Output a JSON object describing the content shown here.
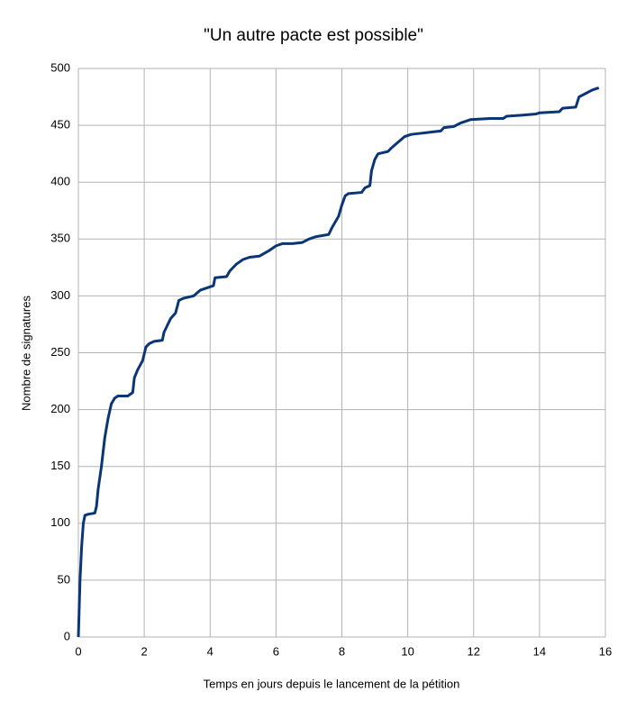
{
  "chart_data": {
    "type": "line",
    "title": "\"Un autre pacte est possible\"",
    "x_label": "Temps en jours depuis le lancement de la pétition",
    "y_label": "Nombre de signatures",
    "xlim": [
      0,
      16
    ],
    "xticks": [
      0,
      2,
      4,
      6,
      8,
      10,
      12,
      14,
      16
    ],
    "ylim": [
      0,
      500
    ],
    "yticks": [
      0,
      50,
      100,
      150,
      200,
      250,
      300,
      350,
      400,
      450,
      500
    ],
    "grid": true,
    "series": [
      {
        "color": "#0a3576",
        "x": [
          0,
          0.02,
          0.05,
          0.1,
          0.15,
          0.2,
          0.3,
          0.5,
          0.55,
          0.6,
          0.7,
          0.8,
          0.9,
          1.0,
          1.1,
          1.2,
          1.5,
          1.65,
          1.7,
          1.8,
          1.95,
          2.05,
          2.15,
          2.3,
          2.55,
          2.6,
          2.8,
          2.95,
          3.05,
          3.2,
          3.5,
          3.7,
          4.0,
          4.1,
          4.15,
          4.5,
          4.6,
          4.8,
          5.0,
          5.2,
          5.5,
          5.8,
          6.0,
          6.2,
          6.5,
          6.8,
          7.0,
          7.2,
          7.6,
          7.7,
          7.9,
          8.0,
          8.1,
          8.2,
          8.6,
          8.7,
          8.85,
          8.9,
          9.0,
          9.1,
          9.4,
          9.5,
          9.7,
          9.9,
          10.1,
          10.4,
          10.7,
          11.0,
          11.1,
          11.4,
          11.6,
          11.9,
          12.5,
          12.9,
          13.0,
          13.5,
          13.9,
          14.0,
          14.6,
          14.7,
          15.1,
          15.2,
          15.4,
          15.6,
          15.8
        ],
        "values": [
          0,
          20,
          50,
          80,
          100,
          107,
          108,
          109,
          115,
          130,
          150,
          175,
          192,
          205,
          210,
          212,
          212,
          215,
          228,
          235,
          243,
          255,
          258,
          260,
          261,
          268,
          280,
          285,
          296,
          298,
          300,
          305,
          308,
          309,
          316,
          317,
          322,
          328,
          332,
          334,
          335,
          340,
          344,
          346,
          346,
          347,
          350,
          352,
          354,
          360,
          370,
          380,
          388,
          390,
          391,
          395,
          397,
          410,
          420,
          425,
          427,
          430,
          435,
          440,
          442,
          443,
          444,
          445,
          448,
          449,
          452,
          455,
          456,
          456,
          458,
          459,
          460,
          461,
          462,
          465,
          466,
          475,
          478,
          481,
          483
        ]
      }
    ]
  }
}
